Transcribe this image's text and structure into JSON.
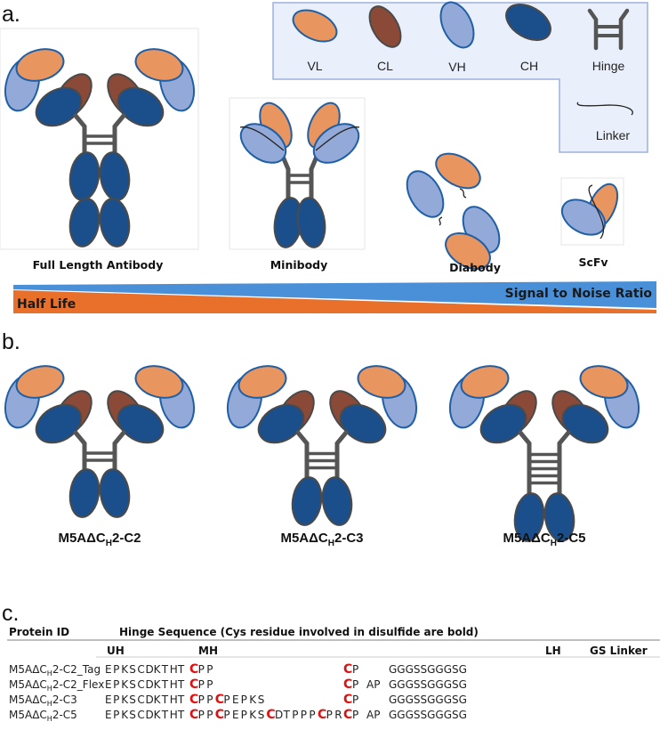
{
  "panels": {
    "a": "a.",
    "b": "b.",
    "c": "c."
  },
  "colors": {
    "VL": "#e8955f",
    "CL": "#8b4a37",
    "VH": "#93a9d8",
    "CH": "#1b4f8b",
    "hinge": "#555555",
    "outline": "#1f5fa5",
    "half_life": "#e8702a",
    "signal_to_noise": "#4a90d9",
    "cys_highlight": "#e01010"
  },
  "legend": {
    "items": [
      {
        "label": "VL",
        "icon": "vl-domain-ellipse"
      },
      {
        "label": "CL",
        "icon": "cl-domain-ellipse"
      },
      {
        "label": "VH",
        "icon": "vh-domain-ellipse"
      },
      {
        "label": "CH",
        "icon": "ch-domain-ellipse"
      },
      {
        "label": "Hinge",
        "icon": "hinge-icon"
      },
      {
        "label": "Linker",
        "icon": "linker-icon"
      }
    ]
  },
  "formats": [
    {
      "label": "Full Length Antibody"
    },
    {
      "label": "Minibody"
    },
    {
      "label": "Diabody"
    },
    {
      "label": "ScFv"
    }
  ],
  "gradient": {
    "left_label": "Half Life",
    "right_label": "Signal to Noise Ratio"
  },
  "variants": [
    {
      "prefix": "M5AΔC",
      "sub": "H",
      "suffix": "2-C2",
      "disulfides": 2
    },
    {
      "prefix": "M5AΔC",
      "sub": "H",
      "suffix": "2-C3",
      "disulfides": 3
    },
    {
      "prefix": "M5AΔC",
      "sub": "H",
      "suffix": "2-C5",
      "disulfides": 5
    }
  ],
  "table": {
    "header_id": "Protein ID",
    "header_seq": "Hinge Sequence (Cys residue involved in disulfide are bold)",
    "sub_headers": {
      "uh": "UH",
      "mh": "MH",
      "lh": "LH",
      "gs": "GS Linker"
    },
    "rows": [
      {
        "prefix": "M5AΔC",
        "sub": "H",
        "suffix": "2-C2_Tag",
        "uh": "EPKSCDKTHT",
        "mh": "CPP",
        "cp": "CP",
        "ap": "",
        "gs": "GGGSSGGGSG"
      },
      {
        "prefix": "M5AΔC",
        "sub": "H",
        "suffix": "2-C2_Flex",
        "uh": "EPKSCDKTHT",
        "mh": "CPP",
        "cp": "CP",
        "ap": "AP",
        "gs": "GGGSSGGGSG"
      },
      {
        "prefix": "M5AΔC",
        "sub": "H",
        "suffix": "2-C3",
        "uh": "EPKSCDKTHT",
        "mh": "CPPCPEPKS",
        "cp": "CP",
        "ap": "",
        "gs": "GGGSSGGGSG"
      },
      {
        "prefix": "M5AΔC",
        "sub": "H",
        "suffix": "2-C5",
        "uh": "EPKSCDKTHT",
        "mh": "CPPCPEPKSCDTPPPCPR",
        "cp": "CP",
        "ap": "AP",
        "gs": "GGGSSGGGSG"
      }
    ]
  }
}
